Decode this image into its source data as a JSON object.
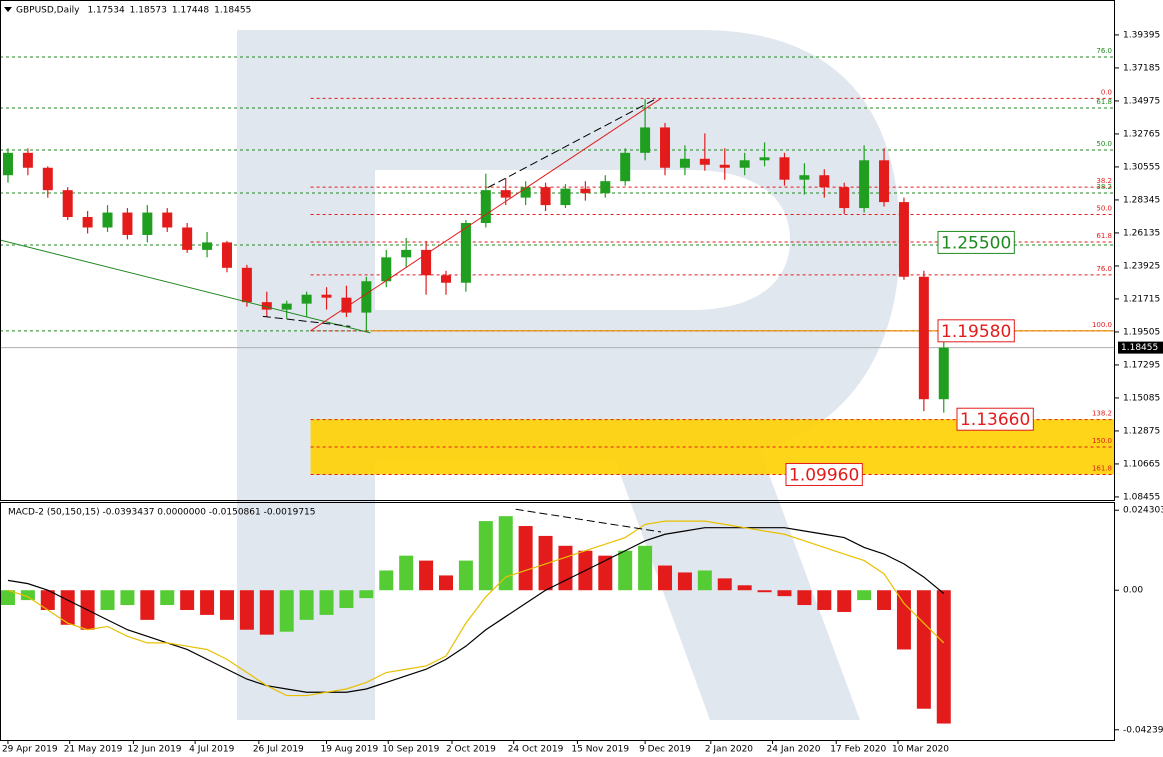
{
  "chart_data": [
    {
      "type": "candlestick",
      "title": "GBPUSD,Daily",
      "last_ohlc": [
        1.17534,
        1.18573,
        1.17448,
        1.18455
      ],
      "open": [
        1.3,
        1.315,
        1.305,
        1.29,
        1.272,
        1.265,
        1.275,
        1.26,
        1.275,
        1.265,
        1.25,
        1.255,
        1.238,
        1.215,
        1.21,
        1.214,
        1.22,
        1.218,
        1.208,
        1.229,
        1.245,
        1.25,
        1.233,
        1.228,
        1.268,
        1.29,
        1.285,
        1.292,
        1.28,
        1.291,
        1.288,
        1.296,
        1.315,
        1.332,
        1.305,
        1.311,
        1.307,
        1.305,
        1.31,
        1.312,
        1.297,
        1.3,
        1.292,
        1.278,
        1.31,
        1.282,
        1.232,
        1.15
      ],
      "high": [
        1.318,
        1.318,
        1.306,
        1.292,
        1.276,
        1.28,
        1.278,
        1.28,
        1.278,
        1.268,
        1.262,
        1.256,
        1.24,
        1.222,
        1.216,
        1.222,
        1.225,
        1.226,
        1.232,
        1.25,
        1.258,
        1.256,
        1.236,
        1.27,
        1.301,
        1.298,
        1.296,
        1.295,
        1.294,
        1.296,
        1.3,
        1.318,
        1.351,
        1.335,
        1.32,
        1.328,
        1.318,
        1.315,
        1.322,
        1.315,
        1.308,
        1.304,
        1.295,
        1.32,
        1.318,
        1.285,
        1.236,
        1.2
      ],
      "low": [
        1.295,
        1.3,
        1.285,
        1.27,
        1.261,
        1.262,
        1.257,
        1.255,
        1.262,
        1.248,
        1.245,
        1.235,
        1.212,
        1.205,
        1.204,
        1.205,
        1.21,
        1.205,
        1.196,
        1.225,
        1.238,
        1.22,
        1.22,
        1.222,
        1.265,
        1.28,
        1.28,
        1.276,
        1.278,
        1.283,
        1.285,
        1.293,
        1.31,
        1.3,
        1.3,
        1.303,
        1.297,
        1.3,
        1.306,
        1.293,
        1.287,
        1.285,
        1.274,
        1.275,
        1.279,
        1.23,
        1.142,
        1.141
      ],
      "close": [
        1.315,
        1.305,
        1.29,
        1.272,
        1.265,
        1.275,
        1.26,
        1.275,
        1.265,
        1.25,
        1.255,
        1.238,
        1.215,
        1.21,
        1.214,
        1.22,
        1.218,
        1.208,
        1.229,
        1.245,
        1.25,
        1.233,
        1.228,
        1.268,
        1.29,
        1.285,
        1.292,
        1.28,
        1.291,
        1.288,
        1.296,
        1.315,
        1.332,
        1.305,
        1.311,
        1.307,
        1.305,
        1.31,
        1.312,
        1.297,
        1.3,
        1.292,
        1.278,
        1.31,
        1.282,
        1.232,
        1.15,
        1.18455
      ],
      "up_color": "#1f9e1f",
      "down_color": "#e31b1b",
      "xlim": [
        -0.4,
        55.6
      ],
      "ylim": [
        1.0825,
        1.416
      ],
      "yticks": [
        1.39395,
        1.37185,
        1.34975,
        1.32765,
        1.30555,
        1.28345,
        1.26135,
        1.23925,
        1.21715,
        1.19505,
        1.17295,
        1.15085,
        1.12875,
        1.10665,
        1.08455
      ],
      "current_price": 1.18455,
      "green_levels": [
        {
          "price": 1.3792,
          "label": "76.0"
        },
        {
          "price": 1.345,
          "label": "61.8"
        },
        {
          "price": 1.3169,
          "label": "50.0"
        },
        {
          "price": 1.2881,
          "label": "38.2"
        },
        {
          "price": 1.2533
        },
        {
          "price": 1.1958
        }
      ],
      "red_levels": {
        "from_x": 15.2,
        "levels": [
          {
            "price": 1.3515,
            "label": "0.0"
          },
          {
            "price": 1.292,
            "label": "38.2"
          },
          {
            "price": 1.2737,
            "label": "50.0"
          },
          {
            "price": 1.2553,
            "label": "61.8"
          },
          {
            "price": 1.2333,
            "label": "76.0"
          },
          {
            "price": 1.1958,
            "label": "100.0"
          },
          {
            "price": 1.1363,
            "label": "138.2"
          },
          {
            "price": 1.118,
            "label": "150.0"
          },
          {
            "price": 1.0996,
            "label": "161.8"
          }
        ]
      },
      "zone": {
        "from_x": 15.2,
        "from": 1.0996,
        "to": 1.1366,
        "color": "#ffd000"
      },
      "trendlines": [
        {
          "x": [
            -0.4,
            18.2
          ],
          "y": [
            1.2566,
            1.1944
          ],
          "color": "#1f8a1f",
          "dashed": false
        },
        {
          "x": [
            15.2,
            32.8
          ],
          "y": [
            1.1958,
            1.3515
          ],
          "color": "#e31b1b",
          "dashed": false
        },
        {
          "x": [
            12.8,
            17.2
          ],
          "y": [
            1.2055,
            1.1988
          ],
          "color": "#000000",
          "dashed": true
        },
        {
          "x": [
            24.1,
            32.5
          ],
          "y": [
            1.2917,
            1.3508
          ],
          "color": "#000000",
          "dashed": true
        }
      ],
      "key_levels": [
        {
          "value": 1.255,
          "label": "1.25500",
          "color": "#1f8a1f"
        },
        {
          "value": 1.1958,
          "label": "1.19580",
          "color": "#e31b1b"
        },
        {
          "value": 1.1366,
          "label": "1.13660",
          "color": "#e31b1b"
        },
        {
          "value": 1.0996,
          "label": "1.09960",
          "color": "#e31b1b"
        }
      ]
    },
    {
      "type": "macd",
      "title": "MACD-2 (50,150,15) -0.0393437 0.0000000 -0.0150861 -0.0019715",
      "histogram": [
        -0.0045,
        -0.003,
        -0.006,
        -0.0105,
        -0.012,
        -0.006,
        -0.0045,
        -0.009,
        -0.0045,
        -0.006,
        -0.0075,
        -0.009,
        -0.012,
        -0.0135,
        -0.0126,
        -0.009,
        -0.0075,
        -0.0054,
        -0.0024,
        0.006,
        0.0105,
        0.009,
        0.0045,
        0.009,
        0.021,
        0.0225,
        0.0195,
        0.0165,
        0.0135,
        0.012,
        0.0105,
        0.012,
        0.0135,
        0.0075,
        0.0054,
        0.006,
        0.0036,
        0.0015,
        -0.0006,
        -0.0018,
        -0.0045,
        -0.006,
        -0.0066,
        -0.003,
        -0.006,
        -0.018,
        -0.036,
        -0.0405
      ],
      "rise_color": "#55cc33",
      "fall_color": "#e31b1b",
      "lines": [
        {
          "color": "#000000",
          "values": [
            0.003,
            0.002,
            0.0,
            -0.003,
            -0.006,
            -0.009,
            -0.012,
            -0.014,
            -0.016,
            -0.018,
            -0.021,
            -0.024,
            -0.027,
            -0.029,
            -0.03,
            -0.031,
            -0.031,
            -0.031,
            -0.03,
            -0.028,
            -0.026,
            -0.024,
            -0.021,
            -0.017,
            -0.012,
            -0.008,
            -0.004,
            0.0,
            0.003,
            0.006,
            0.009,
            0.012,
            0.015,
            0.017,
            0.018,
            0.019,
            0.019,
            0.019,
            0.019,
            0.019,
            0.018,
            0.017,
            0.016,
            0.013,
            0.011,
            0.008,
            0.004,
            -0.001
          ]
        },
        {
          "color": "#e8c000",
          "values": [
            0.0,
            -0.002,
            -0.006,
            -0.01,
            -0.012,
            -0.011,
            -0.014,
            -0.016,
            -0.016,
            -0.017,
            -0.018,
            -0.021,
            -0.025,
            -0.029,
            -0.032,
            -0.032,
            -0.031,
            -0.03,
            -0.028,
            -0.025,
            -0.024,
            -0.023,
            -0.02,
            -0.01,
            -0.002,
            0.004,
            0.006,
            0.008,
            0.01,
            0.012,
            0.014,
            0.016,
            0.02,
            0.021,
            0.021,
            0.021,
            0.02,
            0.019,
            0.018,
            0.017,
            0.015,
            0.013,
            0.011,
            0.009,
            0.005,
            -0.004,
            -0.01,
            -0.016
          ]
        }
      ],
      "trendlines": [
        {
          "x": [
            25.5,
            32.8
          ],
          "y": [
            0.0246,
            0.0177
          ],
          "color": "#000000",
          "dashed": true
        }
      ],
      "xlim": [
        -0.4,
        55.6
      ],
      "ylim": [
        -0.0455,
        0.0265
      ],
      "yticks": [
        0.0243036,
        {
          "value": 0,
          "label": "0.00"
        },
        -0.042396
      ],
      "xticks": [
        {
          "value": 0,
          "label": "29 Apr 2019"
        },
        {
          "value": 3.1,
          "label": "21 May 2019"
        },
        {
          "value": 6.3,
          "label": "12 Jun 2019"
        },
        {
          "value": 9.4,
          "label": "4 Jul 2019"
        },
        {
          "value": 12.6,
          "label": "26 Jul 2019"
        },
        {
          "value": 16,
          "label": "19 Aug 2019"
        },
        {
          "value": 19.1,
          "label": "10 Sep 2019"
        },
        {
          "value": 22.3,
          "label": "2 Oct 2019"
        },
        {
          "value": 25.4,
          "label": "24 Oct 2019"
        },
        {
          "value": 28.6,
          "label": "15 Nov 2019"
        },
        {
          "value": 32,
          "label": "9 Dec 2019"
        },
        {
          "value": 35.3,
          "label": "2 Jan 2020"
        },
        {
          "value": 38.4,
          "label": "24 Jan 2020"
        },
        {
          "value": 41.6,
          "label": "17 Feb 2020"
        },
        {
          "value": 44.7,
          "label": "10 Mar 2020"
        }
      ]
    }
  ]
}
